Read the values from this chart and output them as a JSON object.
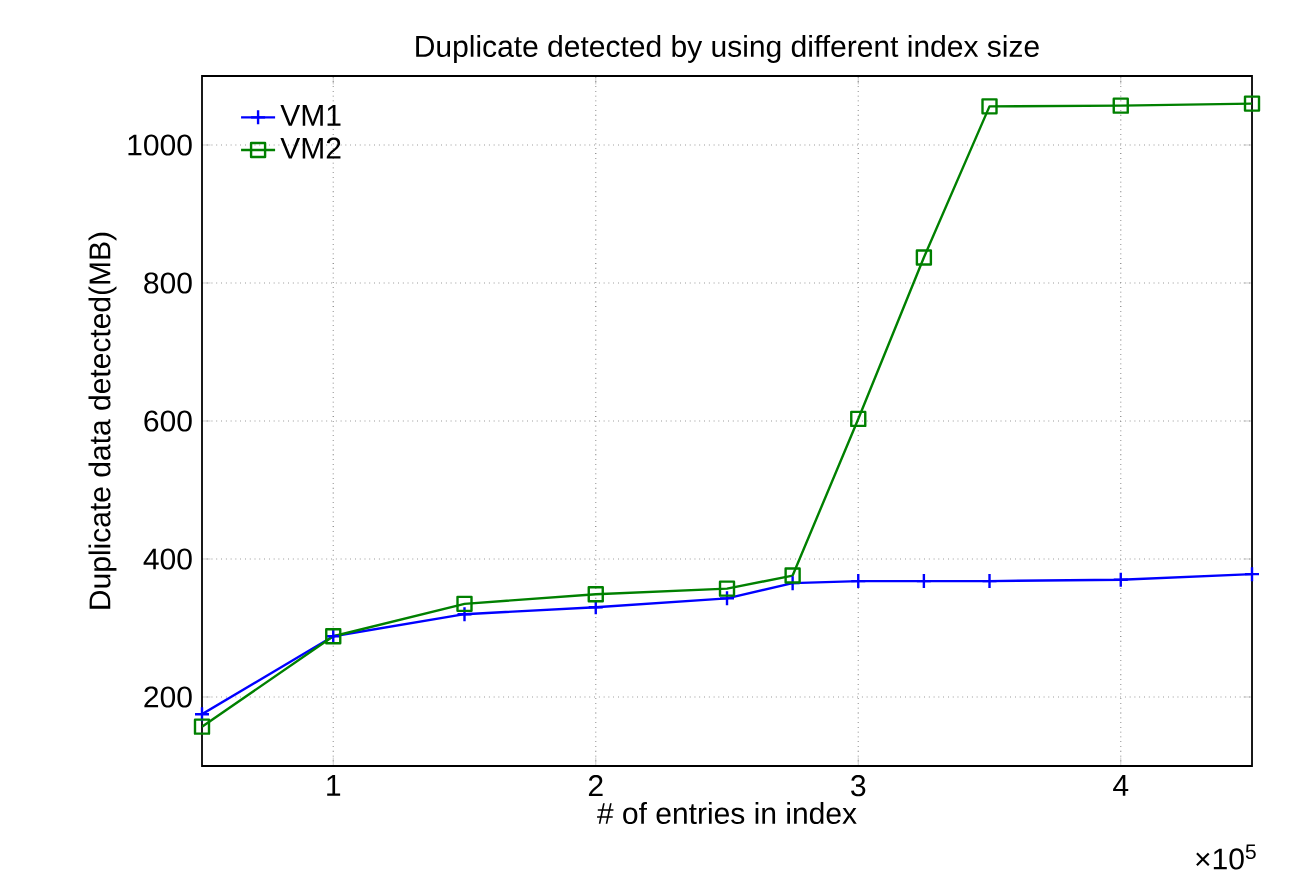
{
  "chart_data": {
    "type": "line",
    "title": "Duplicate detected by using different index size",
    "xlabel": "# of entries in index",
    "ylabel": "Duplicate data detected(MB)",
    "annotations": [
      "×10$^{5}$"
    ],
    "xlim": [
      0.5,
      4.5
    ],
    "xticks": [
      1,
      2,
      3,
      4
    ],
    "ylim": [
      100,
      1100
    ],
    "yticks": [
      200,
      400,
      600,
      800,
      1000
    ],
    "grid": true,
    "legend": "top left",
    "line_style": "solid",
    "series": [
      {
        "name": "VM1",
        "color": "#0000ff",
        "marker": "cross",
        "x": [
          0.5,
          1,
          1.5,
          2,
          2.5,
          2.75,
          3,
          3.25,
          3.5,
          4,
          4.5
        ],
        "values": [
          175,
          288,
          320,
          330,
          343,
          365,
          368,
          368,
          368,
          370,
          378
        ]
      },
      {
        "name": "VM2",
        "color": "#008000",
        "marker": "square",
        "x": [
          0.5,
          1,
          1.5,
          2,
          2.5,
          2.75,
          3,
          3.25,
          3.5,
          4,
          4.5
        ],
        "values": [
          157,
          288,
          335,
          349,
          357,
          376,
          603,
          837,
          1056,
          1057,
          1060
        ]
      }
    ]
  }
}
